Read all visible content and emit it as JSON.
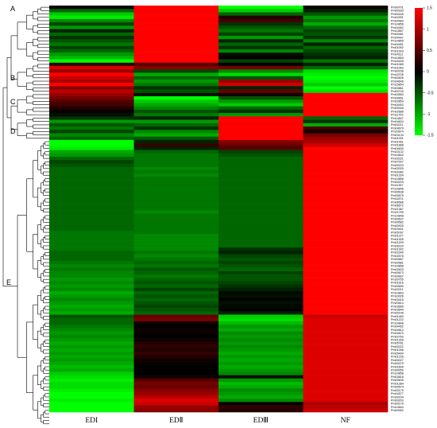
{
  "chart_data": {
    "type": "heatmap",
    "columns": [
      "EDI",
      "EDⅡ",
      "EDⅢ",
      "NF"
    ],
    "colorbar": {
      "ticks": [
        1.5,
        1,
        0.5,
        0,
        -0.5,
        -1,
        -1.5
      ],
      "range": [
        -1.5,
        1.5
      ],
      "colors": {
        "high": "#ff0000",
        "mid": "#000000",
        "low": "#00ff00"
      }
    },
    "clusters": [
      {
        "label": "A",
        "first_row": 0,
        "last_row": 16
      },
      {
        "label": "B",
        "first_row": 17,
        "last_row": 25
      },
      {
        "label": "C",
        "first_row": 26,
        "last_row": 32
      },
      {
        "label": "D",
        "first_row": 33,
        "last_row": 39
      },
      {
        "label": "E",
        "first_row": 40,
        "last_row": 124
      }
    ],
    "rows": [
      {
        "id": "Pm00701",
        "values": [
          0.05,
          1.5,
          -1.5,
          0.1
        ]
      },
      {
        "id": "Pm00183",
        "values": [
          -0.6,
          1.5,
          -1.2,
          -0.2
        ]
      },
      {
        "id": "Pm00445",
        "values": [
          -1.2,
          1.5,
          -0.6,
          -0.5
        ]
      },
      {
        "id": "Pm04391",
        "values": [
          -1.4,
          1.5,
          0.2,
          -0.9
        ]
      },
      {
        "id": "Pm04484",
        "values": [
          -0.8,
          1.5,
          0.4,
          -0.7
        ]
      },
      {
        "id": "Pm14856",
        "values": [
          -0.4,
          1.5,
          -0.3,
          -1.0
        ]
      },
      {
        "id": "Pm04462",
        "values": [
          -0.9,
          1.5,
          -0.5,
          -0.6
        ]
      },
      {
        "id": "Pm14857",
        "values": [
          -0.2,
          1.5,
          -0.7,
          -0.4
        ]
      },
      {
        "id": "Pm00481",
        "values": [
          -0.6,
          1.5,
          -0.4,
          -0.5
        ]
      },
      {
        "id": "Pm04447",
        "values": [
          -0.3,
          1.5,
          -0.9,
          -0.3
        ]
      },
      {
        "id": "Pm14855",
        "values": [
          -0.5,
          1.5,
          -0.2,
          -0.8
        ]
      },
      {
        "id": "Pm04451",
        "values": [
          -0.7,
          1.5,
          -0.6,
          -0.2
        ]
      },
      {
        "id": "Pm01092",
        "values": [
          -0.4,
          1.5,
          -0.3,
          -0.6
        ]
      },
      {
        "id": "Pm01003",
        "values": [
          -0.6,
          1.5,
          -0.8,
          -0.4
        ]
      },
      {
        "id": "Pm04111",
        "values": [
          -0.9,
          1.5,
          -0.1,
          -0.3
        ]
      },
      {
        "id": "Pm14859",
        "values": [
          -1.1,
          1.5,
          0.05,
          -0.2
        ]
      },
      {
        "id": "Pm16405",
        "values": [
          -1.5,
          1.5,
          -0.4,
          -0.7
        ]
      },
      {
        "id": "Pm01085",
        "values": [
          0.3,
          0.5,
          0.0,
          -0.2
        ]
      },
      {
        "id": "Pm01063",
        "values": [
          1.3,
          0.8,
          0.7,
          -0.6
        ]
      },
      {
        "id": "Pm00236",
        "values": [
          0.9,
          -0.4,
          -0.8,
          -1.3
        ]
      },
      {
        "id": "Pm15705",
        "values": [
          1.5,
          -1.0,
          -1.3,
          -1.4
        ]
      },
      {
        "id": "Pm00826",
        "values": [
          1.2,
          -0.6,
          -0.5,
          -1.5
        ]
      },
      {
        "id": "Pm04646",
        "values": [
          1.0,
          -0.9,
          0.9,
          -1.4
        ]
      },
      {
        "id": "Pm15854",
        "values": [
          1.5,
          -0.7,
          1.2,
          -1.2
        ]
      },
      {
        "id": "Pm00861",
        "values": [
          0.8,
          -0.3,
          -0.2,
          -1.5
        ]
      },
      {
        "id": "Pm00740",
        "values": [
          1.1,
          -0.5,
          0.6,
          -1.3
        ]
      },
      {
        "id": "Pm04563",
        "values": [
          0.9,
          -0.1,
          0.1,
          1.5
        ]
      },
      {
        "id": "Pm00651",
        "values": [
          0.7,
          -1.5,
          -0.5,
          1.5
        ]
      },
      {
        "id": "Pm02854",
        "values": [
          0.5,
          -1.2,
          -0.9,
          1.5
        ]
      },
      {
        "id": "Pm04453",
        "values": [
          0.4,
          -1.0,
          -1.2,
          1.5
        ]
      },
      {
        "id": "Pm00345",
        "values": [
          0.2,
          -0.8,
          -0.6,
          1.5
        ]
      },
      {
        "id": "Pm02686",
        "values": [
          0.05,
          -0.5,
          -0.3,
          1.5
        ]
      },
      {
        "id": "Pm11753",
        "values": [
          -0.1,
          -0.7,
          -0.9,
          1.5
        ]
      },
      {
        "id": "Pm14847",
        "values": [
          -0.3,
          -0.2,
          1.5,
          -0.6
        ]
      },
      {
        "id": "Pm04634",
        "values": [
          -0.9,
          -0.9,
          1.5,
          -0.3
        ]
      },
      {
        "id": "Pm00211",
        "values": [
          -0.5,
          -0.6,
          1.5,
          -1.0
        ]
      },
      {
        "id": "Pm04679",
        "values": [
          -0.7,
          -0.3,
          1.5,
          0.4
        ]
      },
      {
        "id": "Pm20674",
        "values": [
          -0.4,
          -0.8,
          1.5,
          0.1
        ]
      },
      {
        "id": "Pm03133",
        "values": [
          -0.8,
          -1.0,
          1.5,
          0.7
        ]
      },
      {
        "id": "Pm01091",
        "values": [
          -0.6,
          -0.5,
          1.5,
          0.9
        ]
      },
      {
        "id": "Pm01461",
        "values": [
          -1.5,
          -0.2,
          0.8,
          1.0
        ]
      },
      {
        "id": "Pm01888",
        "values": [
          -1.5,
          0.3,
          0.6,
          1.2
        ]
      },
      {
        "id": "Pm04635",
        "values": [
          -1.4,
          -0.2,
          0.5,
          1.5
        ]
      },
      {
        "id": "Pm10132",
        "values": [
          -1.0,
          -0.6,
          -0.4,
          1.5
        ]
      },
      {
        "id": "Pm14842",
        "values": [
          -0.9,
          -0.7,
          -0.5,
          1.5
        ]
      },
      {
        "id": "Pm02021",
        "values": [
          -0.6,
          -0.7,
          -0.6,
          1.5
        ]
      },
      {
        "id": "Pm07007",
        "values": [
          -0.4,
          -0.7,
          -0.6,
          1.5
        ]
      },
      {
        "id": "Pm00223",
        "values": [
          -0.5,
          -0.7,
          -0.6,
          1.5
        ]
      },
      {
        "id": "Pm02025",
        "values": [
          -0.6,
          -0.8,
          -0.6,
          1.5
        ]
      },
      {
        "id": "Pm04382",
        "values": [
          -0.6,
          -0.7,
          -0.6,
          1.5
        ]
      },
      {
        "id": "Pm01334",
        "values": [
          -0.6,
          -0.8,
          -0.6,
          1.5
        ]
      },
      {
        "id": "Pm14856",
        "values": [
          -0.6,
          -0.7,
          -0.6,
          1.5
        ]
      },
      {
        "id": "Pm00225",
        "values": [
          -0.6,
          -0.7,
          -0.6,
          1.5
        ]
      },
      {
        "id": "Pm11357",
        "values": [
          -0.6,
          -0.7,
          -0.6,
          1.5
        ]
      },
      {
        "id": "Pm14846",
        "values": [
          -0.6,
          -0.7,
          -0.6,
          1.5
        ]
      },
      {
        "id": "Pm00638",
        "values": [
          -0.6,
          -0.7,
          -0.6,
          1.5
        ]
      },
      {
        "id": "Pm00675",
        "values": [
          -0.6,
          -0.7,
          -0.6,
          1.5
        ]
      },
      {
        "id": "Pm11874",
        "values": [
          -0.6,
          -0.7,
          -0.6,
          1.5
        ]
      },
      {
        "id": "Pm06586",
        "values": [
          -0.6,
          -0.7,
          -0.6,
          1.5
        ]
      },
      {
        "id": "Pm06672",
        "values": [
          -0.6,
          -0.7,
          -0.6,
          1.5
        ]
      },
      {
        "id": "Pm21367",
        "values": [
          -0.6,
          -0.7,
          -0.6,
          1.5
        ]
      },
      {
        "id": "Pm21759",
        "values": [
          -0.6,
          -0.8,
          -0.6,
          1.5
        ]
      },
      {
        "id": "Pm14848",
        "values": [
          -0.6,
          -0.7,
          -0.6,
          1.5
        ]
      },
      {
        "id": "Pm00637",
        "values": [
          -0.6,
          -0.7,
          -0.6,
          1.5
        ]
      },
      {
        "id": "Pm00582",
        "values": [
          -0.6,
          -0.7,
          -0.6,
          1.5
        ]
      },
      {
        "id": "Pm00925",
        "values": [
          -0.6,
          -0.7,
          -0.6,
          1.5
        ]
      },
      {
        "id": "Pm03401",
        "values": [
          -0.6,
          -0.7,
          -0.6,
          1.5
        ]
      },
      {
        "id": "Pm05787",
        "values": [
          -0.7,
          -0.7,
          -0.6,
          1.5
        ]
      },
      {
        "id": "Pm01377",
        "values": [
          -0.7,
          -0.8,
          -0.6,
          1.5
        ]
      },
      {
        "id": "Pm01305",
        "values": [
          -0.7,
          -0.8,
          -0.6,
          1.5
        ]
      },
      {
        "id": "Pm01209",
        "values": [
          -0.7,
          -0.8,
          -0.6,
          1.5
        ]
      },
      {
        "id": "Pm06220",
        "values": [
          -0.7,
          -0.8,
          -0.6,
          1.5
        ]
      },
      {
        "id": "Pm01302",
        "values": [
          -0.7,
          -0.8,
          -0.3,
          1.5
        ]
      },
      {
        "id": "Pm02340",
        "values": [
          -0.6,
          -0.7,
          -0.2,
          1.5
        ]
      },
      {
        "id": "Pm04576",
        "values": [
          -0.6,
          -0.8,
          -0.4,
          1.5
        ]
      },
      {
        "id": "Pm00667",
        "values": [
          -0.6,
          -0.7,
          -0.5,
          1.5
        ]
      },
      {
        "id": "Pm00581",
        "values": [
          -0.7,
          -0.6,
          -0.4,
          1.5
        ]
      },
      {
        "id": "Pm14858",
        "values": [
          -0.8,
          -0.7,
          -0.5,
          1.5
        ]
      },
      {
        "id": "Pm02633",
        "values": [
          -0.7,
          -0.5,
          -0.6,
          1.5
        ]
      },
      {
        "id": "Pm00673",
        "values": [
          -0.8,
          -0.6,
          -0.4,
          1.5
        ]
      },
      {
        "id": "Pm00667",
        "values": [
          -0.8,
          -0.7,
          -0.5,
          1.5
        ]
      },
      {
        "id": "Pm20755",
        "values": [
          -0.9,
          -0.6,
          -0.5,
          1.5
        ]
      },
      {
        "id": "Pm01616",
        "values": [
          -0.8,
          -0.5,
          -0.4,
          1.5
        ]
      },
      {
        "id": "Pm00690",
        "values": [
          -0.9,
          -0.6,
          -0.3,
          1.5
        ]
      },
      {
        "id": "Pm03211",
        "values": [
          -0.8,
          -0.4,
          -0.2,
          1.5
        ]
      },
      {
        "id": "Pm14853",
        "values": [
          -1.0,
          -0.6,
          -0.05,
          1.5
        ]
      },
      {
        "id": "Pm10026",
        "values": [
          -0.9,
          -0.5,
          -0.1,
          1.5
        ]
      },
      {
        "id": "Pm03415",
        "values": [
          -0.8,
          -0.6,
          0.0,
          1.5
        ]
      },
      {
        "id": "Pm20614",
        "values": [
          -0.9,
          -0.5,
          -0.1,
          1.5
        ]
      },
      {
        "id": "Pm03665",
        "values": [
          -1.0,
          -0.4,
          -0.05,
          1.5
        ]
      },
      {
        "id": "Pm03644",
        "values": [
          -0.9,
          -0.5,
          0.0,
          1.5
        ]
      },
      {
        "id": "Pm00146",
        "values": [
          -1.0,
          -0.6,
          -0.2,
          1.5
        ]
      },
      {
        "id": "Pm01483",
        "values": [
          -0.5,
          0.6,
          -1.2,
          1.2
        ]
      },
      {
        "id": "Pm01222",
        "values": [
          -0.6,
          0.7,
          -1.3,
          1.3
        ]
      },
      {
        "id": "Pm14848",
        "values": [
          -0.6,
          0.1,
          -1.1,
          1.3
        ]
      },
      {
        "id": "Pm04452",
        "values": [
          -0.7,
          0.0,
          -0.9,
          1.3
        ]
      },
      {
        "id": "Pm04812",
        "values": [
          -0.8,
          0.1,
          -1.0,
          1.3
        ]
      },
      {
        "id": "Pm04673",
        "values": [
          -0.9,
          0.05,
          -0.8,
          1.3
        ]
      },
      {
        "id": "Pm02760",
        "values": [
          -0.8,
          0.0,
          -0.9,
          1.3
        ]
      },
      {
        "id": "Pm01399",
        "values": [
          -0.9,
          0.1,
          -0.8,
          1.3
        ]
      },
      {
        "id": "Pm05781",
        "values": [
          -1.0,
          0.2,
          -0.9,
          1.3
        ]
      },
      {
        "id": "Pm00222",
        "values": [
          -0.9,
          0.3,
          -0.8,
          1.3
        ]
      },
      {
        "id": "Pm01266",
        "values": [
          -1.0,
          0.2,
          -0.9,
          1.3
        ]
      },
      {
        "id": "Pm05404",
        "values": [
          -0.9,
          0.3,
          -1.0,
          1.3
        ]
      },
      {
        "id": "Pm01226",
        "values": [
          -1.0,
          0.2,
          -0.9,
          1.3
        ]
      },
      {
        "id": "Pm00027",
        "values": [
          -0.9,
          0.1,
          -1.0,
          1.3
        ]
      },
      {
        "id": "Pm00479",
        "values": [
          -1.0,
          0.05,
          -0.9,
          1.3
        ]
      },
      {
        "id": "Pm01609",
        "values": [
          -1.1,
          0.0,
          -1.0,
          1.3
        ]
      },
      {
        "id": "Pm00059",
        "values": [
          -1.0,
          0.0,
          -0.9,
          1.3
        ]
      },
      {
        "id": "Pm14858",
        "values": [
          -1.2,
          0.0,
          -0.8,
          1.3
        ]
      },
      {
        "id": "Pm03818",
        "values": [
          -1.3,
          0.1,
          -0.1,
          1.3
        ]
      },
      {
        "id": "Pm00605",
        "values": [
          -1.4,
          0.5,
          -0.9,
          1.3
        ]
      },
      {
        "id": "Pm01384",
        "values": [
          -1.3,
          0.7,
          -1.1,
          1.3
        ]
      },
      {
        "id": "Pm00574",
        "values": [
          -1.3,
          0.6,
          -1.0,
          1.3
        ]
      },
      {
        "id": "Pm00179",
        "values": [
          -1.4,
          0.8,
          -0.8,
          1.3
        ]
      },
      {
        "id": "Pm04577",
        "values": [
          -1.5,
          0.9,
          -0.9,
          1.3
        ]
      },
      {
        "id": "Pm00234",
        "values": [
          -1.5,
          1.1,
          -1.0,
          1.3
        ]
      },
      {
        "id": "Pm00203",
        "values": [
          -1.4,
          1.3,
          -0.8,
          1.3
        ]
      },
      {
        "id": "Pm00179",
        "values": [
          -1.5,
          1.2,
          0.0,
          1.0
        ]
      },
      {
        "id": "Pm14844",
        "values": [
          -1.5,
          0.9,
          0.3,
          1.1
        ]
      },
      {
        "id": "Pm00052",
        "values": [
          -1.5,
          0.8,
          0.2,
          1.2
        ]
      }
    ]
  }
}
